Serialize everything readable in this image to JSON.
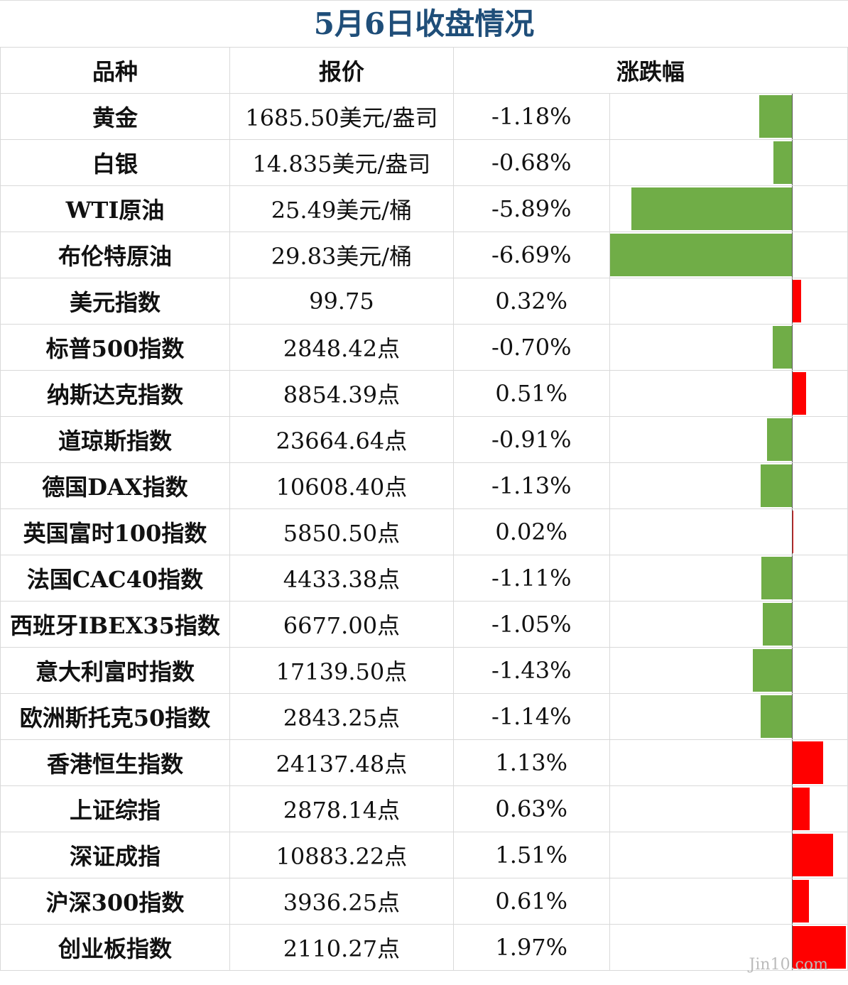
{
  "title": "5月6日收盘情况",
  "headers": {
    "name": "品种",
    "price": "报价",
    "change": "涨跌幅"
  },
  "watermark": "Jin10.com",
  "colors": {
    "up": "#ff0000",
    "down": "#70ad47",
    "title": "#1f4e79"
  },
  "chart_data": {
    "type": "table",
    "columns": [
      "品种",
      "报价",
      "涨跌幅"
    ],
    "rows": [
      {
        "name": "黄金",
        "price": "1685.50美元/盎司",
        "change_text": "-1.18%",
        "change": -1.18
      },
      {
        "name": "白银",
        "price": "14.835美元/盎司",
        "change_text": "-0.68%",
        "change": -0.68
      },
      {
        "name": "WTI原油",
        "price": "25.49美元/桶",
        "change_text": "-5.89%",
        "change": -5.89
      },
      {
        "name": "布伦特原油",
        "price": "29.83美元/桶",
        "change_text": "-6.69%",
        "change": -6.69
      },
      {
        "name": "美元指数",
        "price": "99.75",
        "change_text": "0.32%",
        "change": 0.32
      },
      {
        "name": "标普500指数",
        "price": "2848.42点",
        "change_text": "-0.70%",
        "change": -0.7
      },
      {
        "name": "纳斯达克指数",
        "price": "8854.39点",
        "change_text": "0.51%",
        "change": 0.51
      },
      {
        "name": "道琼斯指数",
        "price": "23664.64点",
        "change_text": "-0.91%",
        "change": -0.91
      },
      {
        "name": "德国DAX指数",
        "price": "10608.40点",
        "change_text": "-1.13%",
        "change": -1.13
      },
      {
        "name": "英国富时100指数",
        "price": "5850.50点",
        "change_text": "0.02%",
        "change": 0.02
      },
      {
        "name": "法国CAC40指数",
        "price": "4433.38点",
        "change_text": "-1.11%",
        "change": -1.11
      },
      {
        "name": "西班牙IBEX35指数",
        "price": "6677.00点",
        "change_text": "-1.05%",
        "change": -1.05
      },
      {
        "name": "意大利富时指数",
        "price": "17139.50点",
        "change_text": "-1.43%",
        "change": -1.43
      },
      {
        "name": "欧洲斯托克50指数",
        "price": "2843.25点",
        "change_text": "-1.14%",
        "change": -1.14
      },
      {
        "name": "香港恒生指数",
        "price": "24137.48点",
        "change_text": "1.13%",
        "change": 1.13
      },
      {
        "name": "上证综指",
        "price": "2878.14点",
        "change_text": "0.63%",
        "change": 0.63
      },
      {
        "name": "深证成指",
        "price": "10883.22点",
        "change_text": "1.51%",
        "change": 1.51
      },
      {
        "name": "沪深300指数",
        "price": "3936.25点",
        "change_text": "0.61%",
        "change": 0.61
      },
      {
        "name": "创业板指数",
        "price": "2110.27点",
        "change_text": "1.97%",
        "change": 1.97
      }
    ]
  }
}
